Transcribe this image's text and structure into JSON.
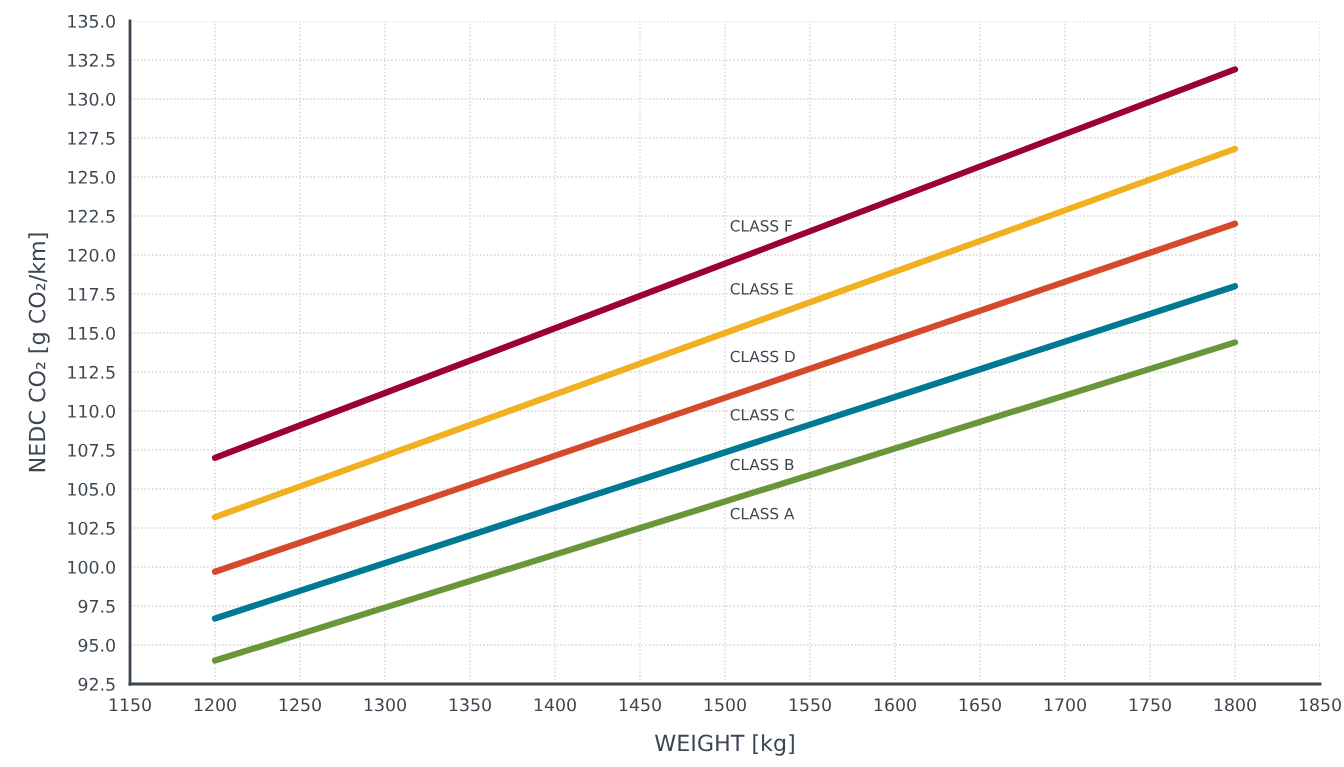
{
  "chart_data": {
    "type": "line",
    "xlabel": "WEIGHT [kg]",
    "ylabel": "NEDC CO₂ [g CO₂/km]",
    "x": [
      1200,
      1800
    ],
    "series": [
      {
        "color": "#9b0037",
        "values": [
          107.0,
          131.9
        ]
      },
      {
        "color": "#f0b020",
        "values": [
          103.2,
          126.8
        ]
      },
      {
        "color": "#d54a2a",
        "values": [
          99.7,
          122.0
        ]
      },
      {
        "color": "#007a94",
        "values": [
          96.7,
          118.0
        ]
      },
      {
        "color": "#6a963a",
        "values": [
          94.0,
          114.4
        ]
      }
    ],
    "annotations": [
      "CLASS F",
      "CLASS E",
      "CLASS D",
      "CLASS C",
      "CLASS B",
      "CLASS A"
    ],
    "xlim": [
      1150,
      1850
    ],
    "xticks": [
      1150,
      1200,
      1250,
      1300,
      1350,
      1400,
      1450,
      1500,
      1550,
      1600,
      1650,
      1700,
      1750,
      1800,
      1850
    ],
    "ylim": [
      92.5,
      135.0
    ],
    "yticks": [
      {
        "value": 92.5,
        "label": "92.5"
      },
      {
        "value": 95.0,
        "label": "95.0"
      },
      {
        "value": 97.5,
        "label": "97.5"
      },
      {
        "value": 100.0,
        "label": "100.0"
      },
      {
        "value": 102.5,
        "label": "102.5"
      },
      {
        "value": 105.0,
        "label": "105.0"
      },
      {
        "value": 107.5,
        "label": "107.5"
      },
      {
        "value": 110.0,
        "label": "110.0"
      },
      {
        "value": 112.5,
        "label": "112.5"
      },
      {
        "value": 115.0,
        "label": "115.0"
      },
      {
        "value": 117.5,
        "label": "117.5"
      },
      {
        "value": 120.0,
        "label": "120.0"
      },
      {
        "value": 122.5,
        "label": "122.5"
      },
      {
        "value": 125.0,
        "label": "125.0"
      },
      {
        "value": 127.5,
        "label": "127.5"
      },
      {
        "value": 130.0,
        "label": "130.0"
      },
      {
        "value": 132.5,
        "label": "132.5"
      },
      {
        "value": 135.0,
        "label": "135.0"
      }
    ],
    "grid": true,
    "marker": "none",
    "line_style": "solid"
  }
}
